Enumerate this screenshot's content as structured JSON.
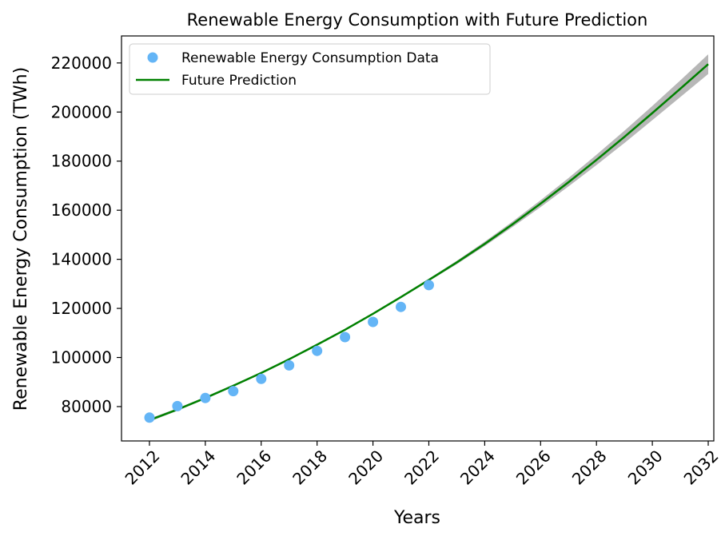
{
  "chart_data": {
    "type": "line",
    "title": "Renewable Energy Consumption with Future Prediction",
    "xlabel": "Years",
    "ylabel": "Renewable Energy Consumption (TWh)",
    "xlim": [
      2011.0,
      2032.2
    ],
    "ylim": [
      66000,
      231000
    ],
    "x_ticks": [
      2012,
      2014,
      2016,
      2018,
      2020,
      2022,
      2024,
      2026,
      2028,
      2030,
      2032
    ],
    "y_ticks": [
      80000,
      100000,
      120000,
      140000,
      160000,
      180000,
      200000,
      220000
    ],
    "grid": false,
    "legend_position": "top-left",
    "series": [
      {
        "name": "Renewable Energy Consumption Data",
        "kind": "scatter",
        "color": "#64b5f6",
        "x": [
          2012,
          2013,
          2014,
          2015,
          2016,
          2017,
          2018,
          2019,
          2020,
          2021,
          2022
        ],
        "y": [
          75500,
          80200,
          83500,
          86300,
          91300,
          96800,
          102700,
          108300,
          114500,
          120600,
          129500
        ]
      },
      {
        "name": "Future Prediction",
        "kind": "line",
        "color": "#008000",
        "band_color": "#999999",
        "x": [
          2012,
          2013,
          2014,
          2015,
          2016,
          2017,
          2018,
          2019,
          2020,
          2021,
          2022,
          2023,
          2024,
          2025,
          2026,
          2027,
          2028,
          2029,
          2030,
          2031,
          2032
        ],
        "y": [
          74500,
          78800,
          83500,
          88500,
          93700,
          99300,
          105200,
          111300,
          117800,
          124600,
          131600,
          138700,
          146300,
          154300,
          162700,
          171400,
          180500,
          189900,
          199600,
          209500,
          219500
        ],
        "band_halfwidth": [
          600,
          500,
          450,
          400,
          350,
          300,
          300,
          300,
          350,
          400,
          500,
          700,
          900,
          1100,
          1400,
          1700,
          2100,
          2500,
          2900,
          3400,
          4000
        ]
      }
    ]
  }
}
